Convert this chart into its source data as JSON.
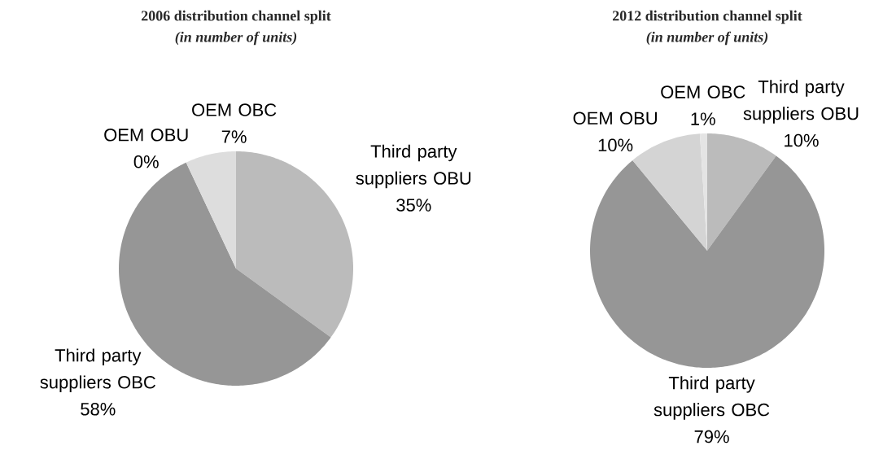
{
  "chart_data": [
    {
      "type": "pie",
      "title": "2006 distribution channel split",
      "subtitle": "(in number of units)",
      "categories": [
        "Third party suppliers OBU",
        "Third party suppliers OBC",
        "OEM OBU",
        "OEM OBC"
      ],
      "values": [
        35,
        58,
        0,
        7
      ],
      "value_labels": [
        "35%",
        "58%",
        "0%",
        "7%"
      ],
      "colors": [
        "#bbbbbb",
        "#969696",
        "#a8a8a8",
        "#dddddd"
      ]
    },
    {
      "type": "pie",
      "title": "2012 distribution channel split",
      "subtitle": "(in number of units)",
      "categories": [
        "Third party suppliers OBU",
        "Third party suppliers OBC",
        "OEM OBU",
        "OEM OBC"
      ],
      "values": [
        10,
        79,
        10,
        1
      ],
      "value_labels": [
        "10%",
        "79%",
        "10%",
        "1%"
      ],
      "colors": [
        "#bbbbbb",
        "#969696",
        "#d4d4d4",
        "#e4e4e4"
      ]
    }
  ]
}
